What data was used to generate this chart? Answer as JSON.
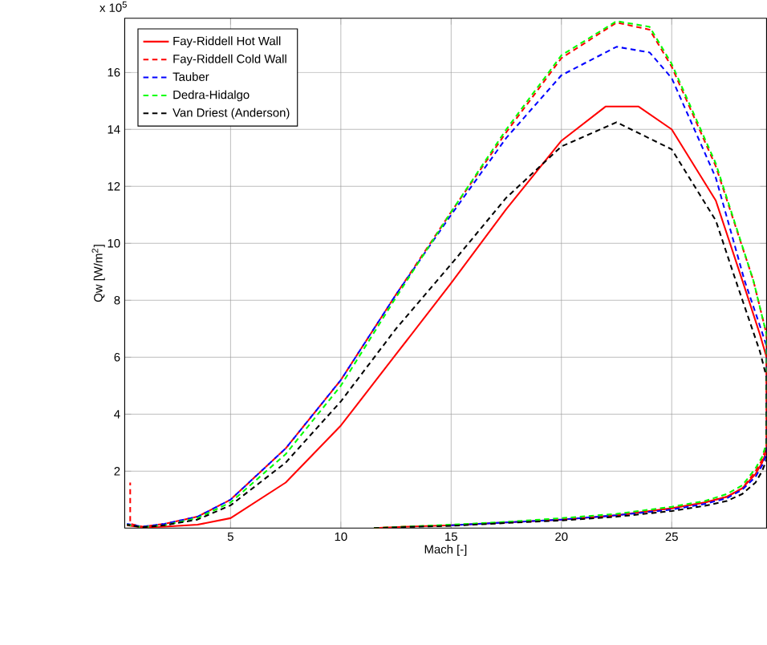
{
  "chart_data": {
    "type": "line",
    "xlabel": "Mach [-]",
    "ylabel": "Qw [W/m$^{2}$]",
    "annotations": [
      "x 10$^{5}$"
    ],
    "xlim": [
      0.2,
      29.3
    ],
    "ylim": [
      0,
      17.9
    ],
    "xticks": [
      5,
      10,
      15,
      20,
      25
    ],
    "yticks": [
      2,
      4,
      6,
      8,
      10,
      12,
      14,
      16
    ],
    "grid": true,
    "legend": "top left",
    "series": [
      {
        "name": "Fay-Riddell Hot Wall",
        "color": "#ff0000",
        "line_style": "solid",
        "x": [
          11.5,
          13,
          15,
          18,
          20,
          22.5,
          25,
          26.5,
          27.5,
          28.2,
          28.8,
          29.1,
          29.3,
          29.3,
          29,
          28.2,
          27,
          25,
          23.5,
          22,
          20,
          17.5,
          15,
          12.5,
          10,
          7.5,
          5,
          3.5,
          2,
          1,
          0.3
        ],
        "values": [
          0,
          0.05,
          0.1,
          0.22,
          0.3,
          0.45,
          0.7,
          0.9,
          1.1,
          1.4,
          1.9,
          2.3,
          2.7,
          6.0,
          6.8,
          8.7,
          11.5,
          14.0,
          14.8,
          14.8,
          13.6,
          11.2,
          8.6,
          6.1,
          3.6,
          1.6,
          0.35,
          0.12,
          0.05,
          0.02,
          0.1
        ]
      },
      {
        "name": "Fay-Riddell Cold Wall",
        "color": "#ff0000",
        "line_style": "dashed",
        "x": [
          11.5,
          13,
          15,
          18,
          20,
          22.5,
          25,
          26.5,
          27.5,
          28.2,
          28.8,
          29.1,
          29.3,
          29.3,
          28.7,
          27,
          25,
          24,
          22.5,
          20,
          17.5,
          15,
          12.5,
          10,
          7.5,
          5,
          3.5,
          2,
          1,
          0.45,
          0.45
        ],
        "values": [
          0,
          0.05,
          0.1,
          0.22,
          0.3,
          0.45,
          0.7,
          0.9,
          1.1,
          1.4,
          2.0,
          2.4,
          2.9,
          6.8,
          8.7,
          12.7,
          16.2,
          17.5,
          17.75,
          16.5,
          13.9,
          11.1,
          8.2,
          5.2,
          2.8,
          1.0,
          0.4,
          0.15,
          0.05,
          0.15,
          1.6
        ]
      },
      {
        "name": "Tauber",
        "color": "#0000ff",
        "line_style": "dashed",
        "x": [
          15,
          18,
          20,
          22.5,
          25,
          26.5,
          27.5,
          28.2,
          28.8,
          29.1,
          29.3,
          29.3,
          29,
          28.3,
          27,
          25,
          24,
          22.5,
          20,
          17.5,
          15,
          12.5,
          10,
          7.5,
          5,
          3.5,
          2,
          1,
          0.3
        ],
        "values": [
          0.1,
          0.22,
          0.3,
          0.45,
          0.65,
          0.85,
          1.05,
          1.35,
          1.8,
          2.2,
          2.6,
          6.4,
          7.1,
          8.7,
          12.3,
          15.8,
          16.7,
          16.9,
          15.9,
          13.7,
          11.0,
          8.2,
          5.2,
          2.8,
          1.0,
          0.4,
          0.15,
          0.05,
          0.15
        ]
      },
      {
        "name": "Dedra-Hidalgo",
        "color": "#00ff00",
        "line_style": "dashed",
        "x": [
          11.5,
          13,
          15,
          17.5,
          20,
          22.5,
          25,
          26.5,
          27.5,
          28.2,
          28.8,
          29.1,
          29.3,
          29.3,
          28.7,
          27,
          25,
          24,
          22.5,
          20,
          17.5,
          15,
          12.5,
          10,
          7.5,
          5,
          3.5,
          2,
          1,
          0.3
        ],
        "values": [
          0,
          0.05,
          0.12,
          0.22,
          0.35,
          0.5,
          0.75,
          0.95,
          1.2,
          1.5,
          2.1,
          2.5,
          3.0,
          6.8,
          8.7,
          12.8,
          16.3,
          17.6,
          17.8,
          16.6,
          14.0,
          11.1,
          8.1,
          5.0,
          2.6,
          0.9,
          0.35,
          0.1,
          0.03,
          0.12
        ]
      },
      {
        "name": "Van Driest (Anderson)",
        "color": "#000000",
        "line_style": "dashed",
        "x": [
          11.5,
          13,
          15,
          17.5,
          20,
          22.5,
          25,
          26.5,
          27.5,
          28.2,
          28.8,
          29.1,
          29.3,
          29.3,
          29,
          27.9,
          27,
          25,
          22.5,
          20,
          17.5,
          15.2,
          12.5,
          10,
          7.5,
          5,
          3.5,
          2,
          1,
          0.3
        ],
        "values": [
          0,
          0.04,
          0.08,
          0.18,
          0.27,
          0.4,
          0.6,
          0.78,
          0.95,
          1.2,
          1.6,
          2.0,
          2.4,
          5.3,
          6.2,
          8.7,
          10.8,
          13.3,
          14.25,
          13.4,
          11.6,
          9.45,
          7.0,
          4.45,
          2.3,
          0.8,
          0.3,
          0.1,
          0.03,
          0.12
        ]
      }
    ]
  }
}
